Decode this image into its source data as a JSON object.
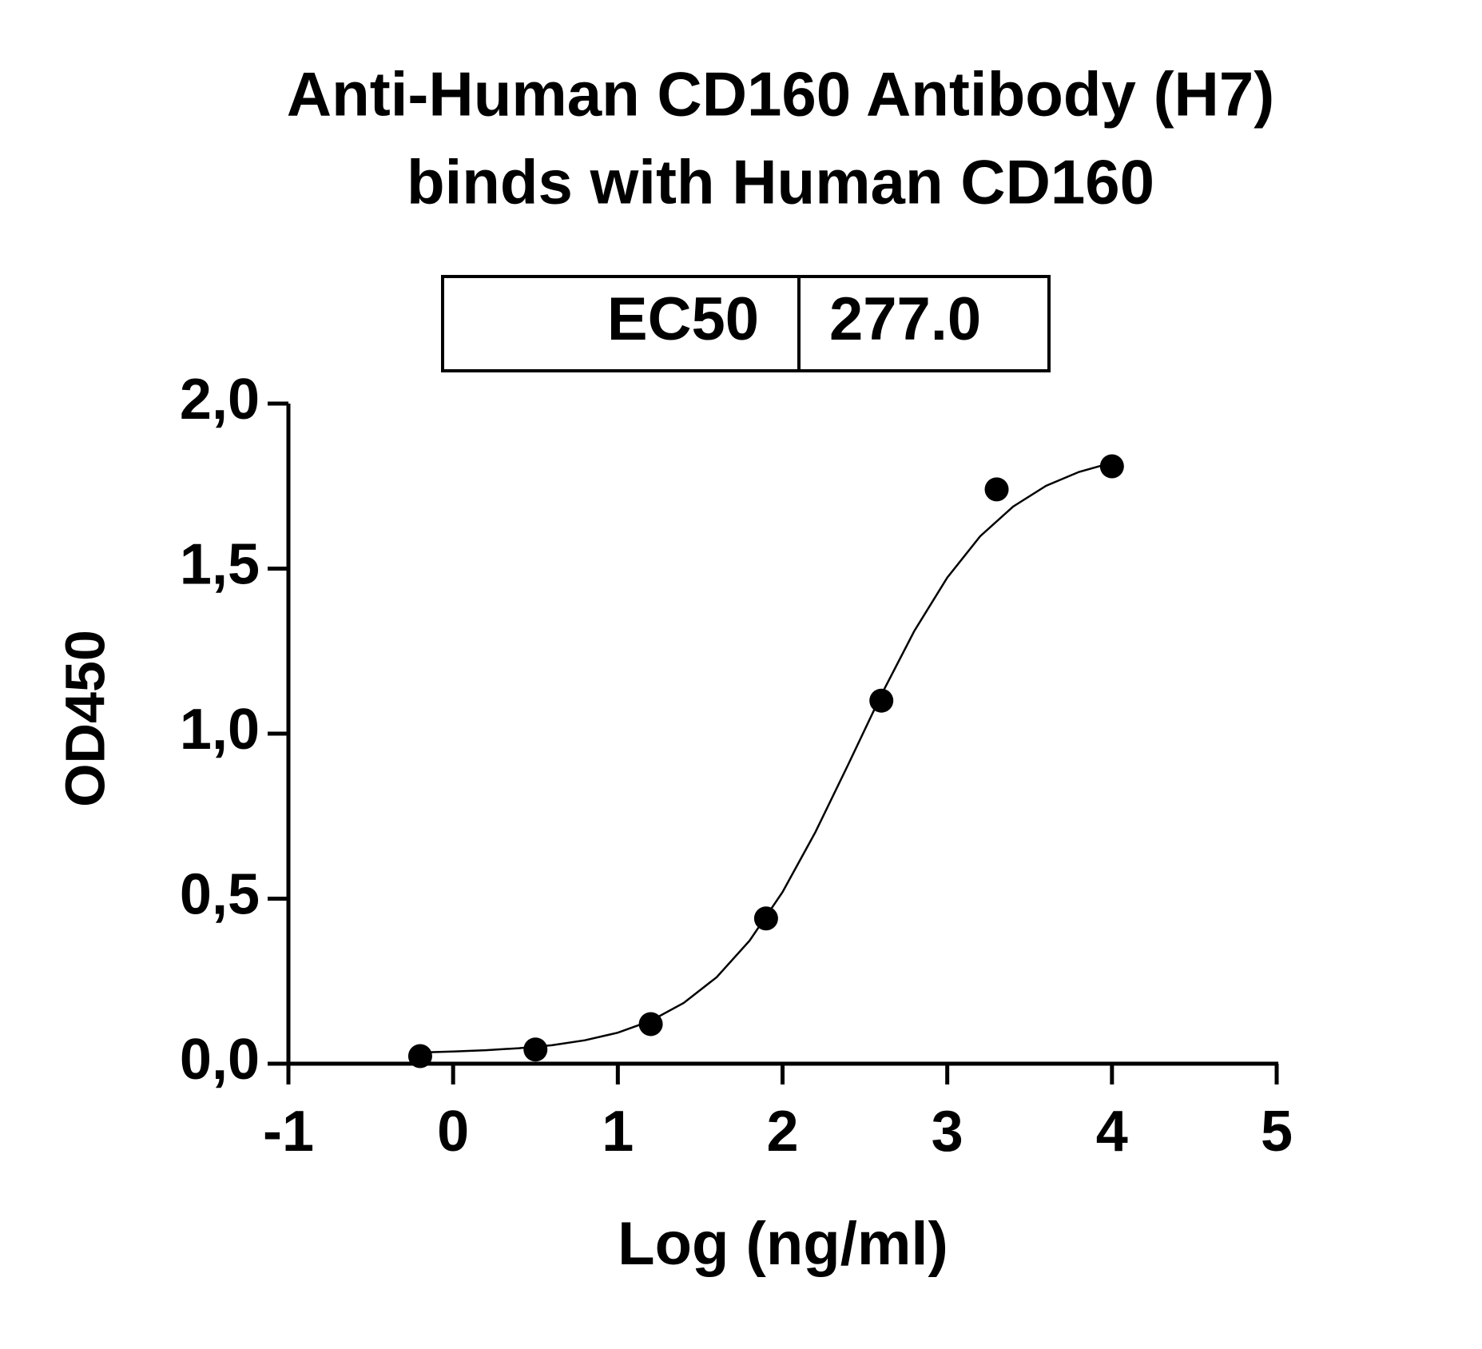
{
  "chart_data": {
    "type": "scatter",
    "title": [
      "Anti-Human CD160 Antibody (H7)",
      "binds with Human CD160"
    ],
    "table": {
      "label": "EC50",
      "value": "277.0"
    },
    "x_label": "Log (ng/ml)",
    "y_label": "OD450",
    "x": [
      -0.2,
      0.5,
      1.2,
      1.9,
      2.6,
      3.3,
      4.0
    ],
    "values": [
      0.023,
      0.043,
      0.12,
      0.44,
      1.1,
      1.74,
      1.81
    ],
    "color": "#000000",
    "curve": {
      "x": [
        -0.2,
        0,
        0.2,
        0.4,
        0.6,
        0.8,
        1.0,
        1.2,
        1.4,
        1.6,
        1.8,
        2.0,
        2.2,
        2.4,
        2.6,
        2.8,
        3.0,
        3.2,
        3.4,
        3.6,
        3.8,
        4.0
      ],
      "values": [
        0.034,
        0.037,
        0.041,
        0.047,
        0.056,
        0.071,
        0.094,
        0.13,
        0.184,
        0.262,
        0.373,
        0.52,
        0.702,
        0.908,
        1.118,
        1.311,
        1.473,
        1.598,
        1.688,
        1.751,
        1.793,
        1.821
      ]
    },
    "xlim": [
      -1,
      5
    ],
    "xticks": [
      -1,
      0,
      1,
      2,
      3,
      4,
      5
    ],
    "ylim": [
      0,
      2
    ],
    "yticks": [
      {
        "value": 0,
        "label": "0,0"
      },
      {
        "value": 0.5,
        "label": "0,5"
      },
      {
        "value": 1,
        "label": "1,0"
      },
      {
        "value": 1.5,
        "label": "1,5"
      },
      {
        "value": 2,
        "label": "2,0"
      }
    ],
    "grid": false
  }
}
